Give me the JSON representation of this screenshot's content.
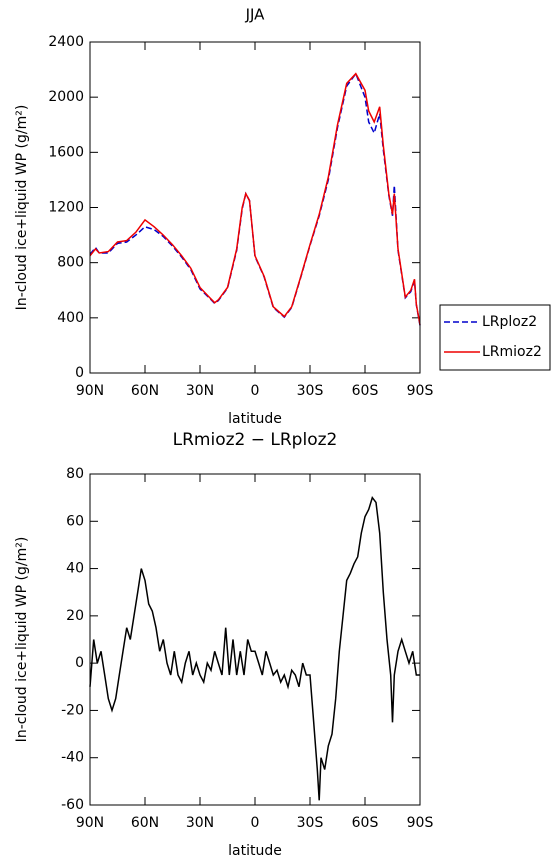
{
  "chart_data": [
    {
      "type": "line",
      "title": "JJA",
      "xlabel": "latitude",
      "ylabel": "In-cloud ice+liquid WP (g/m²)",
      "xlim": [
        90,
        -90
      ],
      "ylim": [
        0,
        2400
      ],
      "xticks": [
        {
          "value": 90,
          "label": "90N"
        },
        {
          "value": 60,
          "label": "60N"
        },
        {
          "value": 30,
          "label": "30N"
        },
        0,
        {
          "value": -30,
          "label": "30S"
        },
        {
          "value": -60,
          "label": "60S"
        },
        {
          "value": -90,
          "label": "90S"
        }
      ],
      "yticks": [
        0,
        400,
        800,
        1200,
        1600,
        2000,
        2400
      ],
      "legend": "right",
      "x": [
        90,
        87,
        85,
        80,
        75,
        70,
        65,
        60,
        55,
        50,
        45,
        40,
        35,
        30,
        25,
        22,
        20,
        15,
        10,
        7,
        5,
        3,
        0,
        -5,
        -10,
        -16,
        -20,
        -25,
        -30,
        -35,
        -40,
        -45,
        -50,
        -55,
        -60,
        -62,
        -65,
        -68,
        -70,
        -73,
        -75,
        -76,
        -78,
        -82,
        -85,
        -87,
        -88,
        -90
      ],
      "series": [
        {
          "name": "LRploz2",
          "color": "#0000cc",
          "linestyle": "dashed",
          "values": [
            860,
            910,
            870,
            870,
            940,
            950,
            1000,
            1060,
            1040,
            990,
            920,
            840,
            750,
            610,
            545,
            505,
            525,
            615,
            890,
            1190,
            1300,
            1250,
            845,
            695,
            475,
            405,
            475,
            695,
            925,
            1140,
            1400,
            1780,
            2080,
            2170,
            2000,
            1820,
            1740,
            1880,
            1620,
            1290,
            1140,
            1360,
            890,
            545,
            590,
            670,
            495,
            345
          ]
        },
        {
          "name": "LRmioz2",
          "color": "#ee0000",
          "linestyle": "solid",
          "values": [
            850,
            900,
            870,
            880,
            950,
            960,
            1020,
            1110,
            1060,
            1000,
            930,
            850,
            760,
            620,
            550,
            510,
            530,
            620,
            900,
            1200,
            1300,
            1250,
            850,
            700,
            480,
            410,
            480,
            700,
            930,
            1150,
            1420,
            1800,
            2100,
            2170,
            2050,
            1900,
            1820,
            1930,
            1650,
            1300,
            1150,
            1300,
            900,
            550,
            600,
            680,
            500,
            350
          ]
        }
      ]
    },
    {
      "type": "line",
      "title": "LRmioz2 − LRploz2",
      "xlabel": "latitude",
      "ylabel": "In-cloud ice+liquid WP (g/m²)",
      "xlim": [
        90,
        -90
      ],
      "ylim": [
        -60,
        80
      ],
      "xticks": [
        {
          "value": 90,
          "label": "90N"
        },
        {
          "value": 60,
          "label": "60N"
        },
        {
          "value": 30,
          "label": "30N"
        },
        0,
        {
          "value": -30,
          "label": "30S"
        },
        {
          "value": -60,
          "label": "60S"
        },
        {
          "value": -90,
          "label": "90S"
        }
      ],
      "yticks": [
        -60,
        -40,
        -20,
        0,
        20,
        40,
        60,
        80
      ],
      "x": [
        90,
        88,
        86,
        84,
        82,
        80,
        78,
        76,
        74,
        72,
        70,
        68,
        66,
        64,
        62,
        60,
        58,
        56,
        54,
        52,
        50,
        48,
        46,
        44,
        42,
        40,
        38,
        36,
        34,
        32,
        30,
        28,
        26,
        24,
        22,
        20,
        18,
        16,
        14,
        12,
        10,
        8,
        6,
        4,
        2,
        0,
        -2,
        -4,
        -6,
        -8,
        -10,
        -12,
        -14,
        -16,
        -18,
        -20,
        -22,
        -24,
        -26,
        -28,
        -30,
        -32,
        -34,
        -35,
        -36,
        -38,
        -40,
        -42,
        -44,
        -46,
        -48,
        -50,
        -52,
        -54,
        -56,
        -58,
        -60,
        -62,
        -64,
        -66,
        -68,
        -70,
        -72,
        -74,
        -75,
        -76,
        -78,
        -80,
        -82,
        -84,
        -86,
        -88,
        -90
      ],
      "series": [
        {
          "color": "#000000",
          "linestyle": "solid",
          "values": [
            -10,
            10,
            0,
            5,
            -5,
            -15,
            -20,
            -15,
            -5,
            5,
            15,
            10,
            20,
            30,
            40,
            35,
            25,
            22,
            15,
            5,
            10,
            0,
            -5,
            5,
            -5,
            -8,
            0,
            5,
            -5,
            0,
            -5,
            -8,
            0,
            -3,
            5,
            0,
            -5,
            15,
            -5,
            10,
            -5,
            5,
            -5,
            10,
            5,
            5,
            0,
            -5,
            5,
            0,
            -5,
            -3,
            -8,
            -5,
            -10,
            -3,
            -5,
            -10,
            0,
            -5,
            -5,
            -25,
            -45,
            -58,
            -40,
            -45,
            -35,
            -30,
            -15,
            5,
            20,
            35,
            38,
            42,
            45,
            55,
            62,
            65,
            70,
            68,
            55,
            30,
            10,
            -5,
            -25,
            -5,
            5,
            10,
            5,
            0,
            5,
            -5,
            -5
          ]
        }
      ]
    }
  ]
}
